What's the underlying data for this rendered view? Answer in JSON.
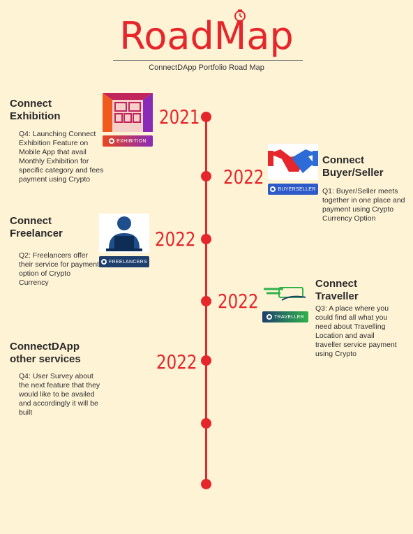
{
  "header": {
    "title": "RoadMap",
    "subtitle": "ConnectDApp Portfolio Road Map"
  },
  "colors": {
    "accent": "#E5262B",
    "background": "#FFF3D6"
  },
  "milestones": [
    {
      "year": "2021",
      "title_line1": "Connect",
      "title_line2": "Exhibition",
      "description": "Q4: Launching Connect Exhibition Feature on Mobile App that avail Monthly Exhibition for specific category and fees payment using Crypto",
      "logo_label": "EXHIBITION",
      "icon": "exhibition-booth-icon"
    },
    {
      "year": "2022",
      "title_line1": "Connect",
      "title_line2": "Buyer/Seller",
      "description": "Q1: Buyer/Seller meets together in one place and payment using Crypto Currency Option",
      "logo_label": "BUYERSELLER",
      "icon": "handshake-icon"
    },
    {
      "year": "2022",
      "title_line1": "Connect",
      "title_line2": "Freelancer",
      "description": "Q2: Freelancers offer their service for payment option of Crypto Currency",
      "logo_label": "FREELANCERS",
      "icon": "freelancer-laptop-icon"
    },
    {
      "year": "2022",
      "title_line1": "Connect",
      "title_line2": "Traveller",
      "description": "Q3: A place where you could find all what you need about Travelling Location and avail traveller service payment using Crypto",
      "logo_label": "TRAVELLER",
      "icon": "traveller-logo-icon"
    },
    {
      "year": "2022",
      "title_line1": "ConnectDApp",
      "title_line2": "other services",
      "description": "Q4: User Survey about the next feature that they would like to be availed and accordingly it will be built"
    }
  ]
}
